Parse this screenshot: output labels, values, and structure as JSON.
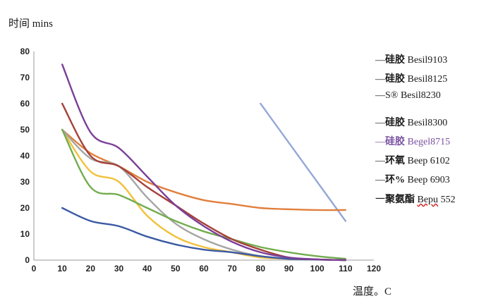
{
  "chart_data": {
    "type": "line",
    "title": "",
    "ylabel": "时间 mins",
    "xlabel": "温度。C",
    "xlim": [
      0,
      120
    ],
    "ylim": [
      0,
      80
    ],
    "x_ticks": [
      0,
      10,
      20,
      30,
      40,
      50,
      60,
      70,
      80,
      90,
      100,
      110,
      120
    ],
    "y_ticks": [
      0,
      10,
      20,
      30,
      40,
      50,
      60,
      70,
      80
    ],
    "grid": false,
    "legend_position": "right",
    "series": [
      {
        "name": "—硅胶 Besil9103",
        "color": "#7b3f98",
        "points": [
          [
            10,
            75
          ],
          [
            20,
            49
          ],
          [
            30,
            43
          ],
          [
            40,
            32
          ],
          [
            50,
            21
          ],
          [
            60,
            13
          ],
          [
            70,
            7
          ],
          [
            80,
            3
          ],
          [
            90,
            1
          ],
          [
            100,
            0.3
          ],
          [
            110,
            0
          ]
        ]
      },
      {
        "name": "—硅胶 Besil8125",
        "color": "#e07f3c",
        "points": [
          [
            10,
            50
          ],
          [
            20,
            41
          ],
          [
            30,
            36
          ],
          [
            40,
            30
          ],
          [
            50,
            26
          ],
          [
            60,
            23
          ],
          [
            70,
            21.5
          ],
          [
            80,
            20
          ],
          [
            90,
            19.5
          ],
          [
            100,
            19.2
          ],
          [
            110,
            19.2
          ]
        ]
      },
      {
        "name": "—S® Besil8230",
        "color": "#94a7d6",
        "points": [
          [
            80,
            60
          ],
          [
            110,
            15
          ]
        ]
      },
      {
        "name": "—硅胶 Besil8300",
        "color": "#a5423a",
        "points": [
          [
            10,
            60
          ],
          [
            20,
            40
          ],
          [
            30,
            36
          ],
          [
            40,
            28
          ],
          [
            50,
            21
          ],
          [
            60,
            14
          ],
          [
            70,
            8
          ],
          [
            80,
            4
          ],
          [
            90,
            1
          ],
          [
            100,
            0.3
          ],
          [
            110,
            0
          ]
        ]
      },
      {
        "name": "—硅胶 Begel8715",
        "color": "#a5a5a5",
        "points": [
          [
            10,
            50
          ],
          [
            20,
            39
          ],
          [
            30,
            36
          ],
          [
            40,
            24
          ],
          [
            50,
            14
          ],
          [
            60,
            8
          ],
          [
            70,
            4
          ],
          [
            80,
            1.5
          ],
          [
            90,
            0.5
          ],
          [
            100,
            0.2
          ],
          [
            110,
            0
          ]
        ]
      },
      {
        "name": "—环氧 Beep 6102",
        "color": "#72ac4d",
        "points": [
          [
            10,
            50
          ],
          [
            20,
            28
          ],
          [
            30,
            25
          ],
          [
            40,
            20
          ],
          [
            50,
            15
          ],
          [
            60,
            11
          ],
          [
            70,
            8
          ],
          [
            80,
            5
          ],
          [
            90,
            3
          ],
          [
            100,
            1.5
          ],
          [
            110,
            0.5
          ]
        ]
      },
      {
        "name": "—环% Beep 6903",
        "color": "#f2c13a",
        "points": [
          [
            10,
            50
          ],
          [
            20,
            34
          ],
          [
            30,
            30
          ],
          [
            40,
            17
          ],
          [
            50,
            9
          ],
          [
            60,
            5
          ],
          [
            70,
            3
          ],
          [
            80,
            1
          ],
          [
            90,
            0.5
          ],
          [
            100,
            0.2
          ],
          [
            110,
            0
          ]
        ]
      },
      {
        "name": "一聚氨酯 Bepu 552",
        "color": "#3b5aa3",
        "points": [
          [
            10,
            20
          ],
          [
            20,
            15
          ],
          [
            30,
            13
          ],
          [
            40,
            9
          ],
          [
            50,
            6
          ],
          [
            60,
            4
          ],
          [
            70,
            3
          ],
          [
            80,
            1.5
          ],
          [
            90,
            0.5
          ],
          [
            100,
            0.2
          ],
          [
            110,
            0
          ]
        ]
      }
    ]
  },
  "legend": {
    "items": [
      {
        "dash": "—",
        "cn": "硅胶",
        "en": " Besil9103"
      },
      {
        "dash": "—",
        "cn": "硅胶",
        "en": " Besil8125"
      },
      {
        "dash": "—",
        "cn": "S®",
        "en": " Besil8230"
      },
      {
        "dash": "—",
        "cn": "硅胶",
        "en": " Besil8300"
      },
      {
        "dash": "—",
        "cn": "硅胶",
        "en": " Begel8715"
      },
      {
        "dash": "—",
        "cn": "环氧",
        "en": " Beep 6102"
      },
      {
        "dash": "—",
        "cn": "环%",
        "en": " Beep 6903"
      },
      {
        "dash": "一",
        "cn": "聚氨酯 ",
        "en": "Bepu",
        "en2": " 552"
      }
    ]
  }
}
